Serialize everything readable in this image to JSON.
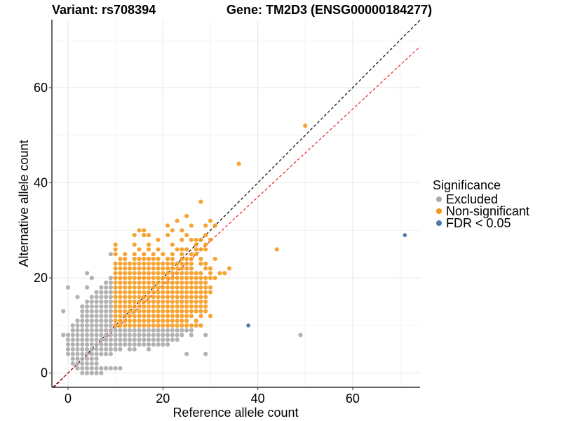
{
  "chart_data": {
    "type": "scatter",
    "title_left": "Variant: rs708394",
    "title_right": "Gene: TM2D3 (ENSG00000184277)",
    "xlabel": "Reference allele count",
    "ylabel": "Alternative allele count",
    "xlim": [
      -3.4,
      74.2
    ],
    "ylim": [
      -3.0,
      74.3
    ],
    "xticks": [
      0,
      20,
      40,
      60
    ],
    "yticks": [
      0,
      20,
      40,
      60
    ],
    "xtick_labels": [
      "0",
      "20",
      "40",
      "60"
    ],
    "ytick_labels": [
      "0",
      "20",
      "40",
      "60"
    ],
    "grid": true,
    "legend": {
      "title": "Significance",
      "placement": "right",
      "entries": [
        {
          "label": "Excluded",
          "color": "#aaaaaa"
        },
        {
          "label": "Non-significant",
          "color": "#f5940f"
        },
        {
          "label": "FDR < 0.05",
          "color": "#4a79aa"
        }
      ]
    },
    "reference_lines": [
      {
        "name": "identity",
        "slope": 1.0,
        "intercept": 0,
        "color": "#000000",
        "dash": true
      },
      {
        "name": "fit",
        "slope": 0.925,
        "intercept": 0,
        "color": "#ee1c25",
        "dash": true
      }
    ],
    "series": [
      {
        "name": "Excluded",
        "color": "#aaaaaa",
        "rows": [
          {
            "y": 0,
            "x": [
              3,
              4,
              5,
              6,
              7
            ]
          },
          {
            "y": 1,
            "x": [
              2,
              3,
              4,
              5,
              6,
              7,
              8,
              9,
              10,
              11
            ]
          },
          {
            "y": 2,
            "x": [
              1,
              2,
              3,
              4,
              5,
              6
            ]
          },
          {
            "y": 3,
            "x": [
              1,
              2,
              3,
              4,
              5,
              6
            ]
          },
          {
            "y": 4,
            "x": [
              0,
              1,
              2,
              3,
              4,
              5,
              6,
              7,
              8,
              9,
              25,
              29
            ]
          },
          {
            "y": 5,
            "x": [
              0,
              1,
              2,
              3,
              4,
              5,
              6,
              7,
              8,
              9,
              10,
              11,
              13,
              14,
              17
            ]
          },
          {
            "y": 6,
            "x": [
              0,
              1,
              2,
              3,
              4,
              5,
              6,
              7,
              8,
              9,
              10,
              11,
              12,
              13,
              14,
              15,
              16,
              17,
              18,
              19,
              20,
              21
            ]
          },
          {
            "y": 7,
            "x": [
              0,
              1,
              2,
              3,
              4,
              5,
              6,
              7,
              8,
              9,
              10,
              11,
              12,
              13,
              14,
              15,
              16,
              17,
              18,
              19,
              20,
              21,
              22,
              23
            ]
          },
          {
            "y": 8,
            "x": [
              -1,
              0,
              1,
              2,
              3,
              4,
              5,
              6,
              7,
              8,
              9,
              10,
              11,
              12,
              13,
              14,
              15,
              16,
              17,
              18,
              19,
              20,
              21,
              22,
              23,
              24,
              26,
              29,
              49
            ]
          },
          {
            "y": 9,
            "x": [
              1,
              2,
              3,
              4,
              5,
              6,
              7,
              8,
              9,
              10,
              11,
              12,
              13,
              14,
              15,
              16,
              17,
              18,
              19,
              20,
              21,
              22,
              23,
              24,
              25,
              26
            ]
          },
          {
            "y": 10,
            "x": [
              1,
              2,
              3,
              4,
              5,
              6,
              7,
              8,
              9
            ]
          },
          {
            "y": 11,
            "x": [
              2,
              3,
              4,
              5,
              6,
              7,
              8,
              9
            ]
          },
          {
            "y": 12,
            "x": [
              3,
              4,
              5,
              6,
              7,
              8,
              9
            ]
          },
          {
            "y": 13,
            "x": [
              -1,
              3,
              4,
              5,
              6,
              7,
              8,
              9
            ]
          },
          {
            "y": 14,
            "x": [
              3,
              4,
              5,
              6,
              7,
              8,
              9
            ]
          },
          {
            "y": 15,
            "x": [
              4,
              5,
              6,
              7,
              8,
              9
            ]
          },
          {
            "y": 16,
            "x": [
              2,
              5,
              6,
              7,
              8,
              9
            ]
          },
          {
            "y": 17,
            "x": [
              6,
              7,
              8,
              9
            ]
          },
          {
            "y": 18,
            "x": [
              0,
              4,
              7,
              8,
              9
            ]
          },
          {
            "y": 19,
            "x": [
              8,
              9
            ]
          },
          {
            "y": 20,
            "x": [
              5,
              9
            ]
          },
          {
            "y": 21,
            "x": [
              4
            ]
          },
          {
            "y": 25,
            "x": [
              9
            ]
          }
        ]
      },
      {
        "name": "Non-significant",
        "color": "#f5940f",
        "rows": [
          {
            "y": 10,
            "x": [
              10,
              11,
              12,
              13,
              14,
              15,
              16,
              17,
              18,
              19,
              20,
              21,
              22,
              23,
              24,
              25,
              26,
              27,
              28
            ]
          },
          {
            "y": 11,
            "x": [
              10,
              11,
              12,
              13,
              14,
              15,
              16,
              17,
              18,
              19,
              20,
              21,
              22,
              23,
              24,
              25,
              27
            ]
          },
          {
            "y": 12,
            "x": [
              10,
              11,
              12,
              13,
              14,
              15,
              16,
              17,
              18,
              19,
              20,
              21,
              22,
              23,
              24,
              25,
              26,
              28,
              30
            ]
          },
          {
            "y": 13,
            "x": [
              10,
              11,
              12,
              13,
              14,
              15,
              16,
              17,
              18,
              19,
              20,
              21,
              22,
              23,
              24,
              25,
              26,
              27,
              28,
              29
            ]
          },
          {
            "y": 14,
            "x": [
              10,
              11,
              12,
              13,
              14,
              15,
              16,
              17,
              18,
              19,
              20,
              21,
              22,
              23,
              24,
              25,
              26,
              27,
              28,
              29
            ]
          },
          {
            "y": 15,
            "x": [
              10,
              11,
              12,
              13,
              14,
              15,
              16,
              17,
              18,
              19,
              20,
              21,
              22,
              23,
              24,
              25,
              26,
              27,
              28,
              29
            ]
          },
          {
            "y": 16,
            "x": [
              10,
              11,
              12,
              13,
              14,
              15,
              16,
              17,
              18,
              19,
              20,
              21,
              22,
              23,
              24,
              25,
              26,
              27,
              28,
              29
            ]
          },
          {
            "y": 17,
            "x": [
              10,
              11,
              12,
              13,
              14,
              15,
              16,
              17,
              18,
              19,
              20,
              21,
              22,
              23,
              24,
              25,
              26,
              27,
              28,
              29,
              30
            ]
          },
          {
            "y": 18,
            "x": [
              10,
              11,
              12,
              13,
              14,
              15,
              16,
              17,
              18,
              19,
              20,
              21,
              22,
              23,
              24,
              25,
              26,
              27,
              28,
              29,
              30
            ]
          },
          {
            "y": 19,
            "x": [
              10,
              11,
              12,
              13,
              14,
              15,
              16,
              17,
              18,
              19,
              20,
              21,
              22,
              23,
              24,
              25,
              26,
              27,
              28,
              29
            ]
          },
          {
            "y": 20,
            "x": [
              10,
              11,
              12,
              13,
              14,
              15,
              16,
              17,
              18,
              19,
              20,
              21,
              22,
              23,
              24,
              25,
              26,
              27,
              28,
              29,
              30,
              31
            ]
          },
          {
            "y": 21,
            "x": [
              10,
              11,
              12,
              13,
              14,
              15,
              16,
              17,
              18,
              19,
              20,
              21,
              22,
              23,
              24,
              25,
              26,
              27,
              28,
              30,
              32,
              33
            ]
          },
          {
            "y": 22,
            "x": [
              10,
              11,
              12,
              13,
              14,
              15,
              16,
              17,
              18,
              19,
              20,
              21,
              22,
              23,
              24,
              25,
              26,
              29,
              30,
              34
            ]
          },
          {
            "y": 23,
            "x": [
              10,
              11,
              12,
              13,
              14,
              15,
              16,
              17,
              18,
              19,
              20,
              21,
              22,
              23,
              24,
              25,
              26,
              28,
              29
            ]
          },
          {
            "y": 24,
            "x": [
              11,
              12,
              14,
              15,
              16,
              17,
              18,
              19,
              21,
              22,
              24,
              25,
              26,
              28,
              31
            ]
          },
          {
            "y": 25,
            "x": [
              10,
              12,
              14,
              16,
              18,
              20,
              22,
              24,
              26,
              27
            ]
          },
          {
            "y": 26,
            "x": [
              10,
              15,
              17,
              19,
              23,
              24,
              25,
              27,
              28,
              29,
              44
            ]
          },
          {
            "y": 27,
            "x": [
              10,
              14,
              17,
              22,
              27,
              29
            ]
          },
          {
            "y": 28,
            "x": [
              19,
              24,
              26,
              27,
              28,
              30
            ]
          },
          {
            "y": 29,
            "x": [
              14,
              16,
              17,
              21,
              25,
              29
            ]
          },
          {
            "y": 30,
            "x": [
              15,
              16,
              22,
              24
            ]
          },
          {
            "y": 31,
            "x": [
              21,
              26,
              29,
              31
            ]
          },
          {
            "y": 32,
            "x": [
              23,
              30
            ]
          },
          {
            "y": 33,
            "x": [
              25
            ]
          },
          {
            "y": 36,
            "x": [
              28
            ]
          },
          {
            "y": 44,
            "x": [
              36
            ]
          },
          {
            "y": 52,
            "x": [
              50
            ]
          }
        ]
      },
      {
        "name": "FDR < 0.05",
        "color": "#4a79aa",
        "points": [
          [
            38,
            10
          ],
          [
            71,
            29
          ]
        ]
      }
    ]
  }
}
